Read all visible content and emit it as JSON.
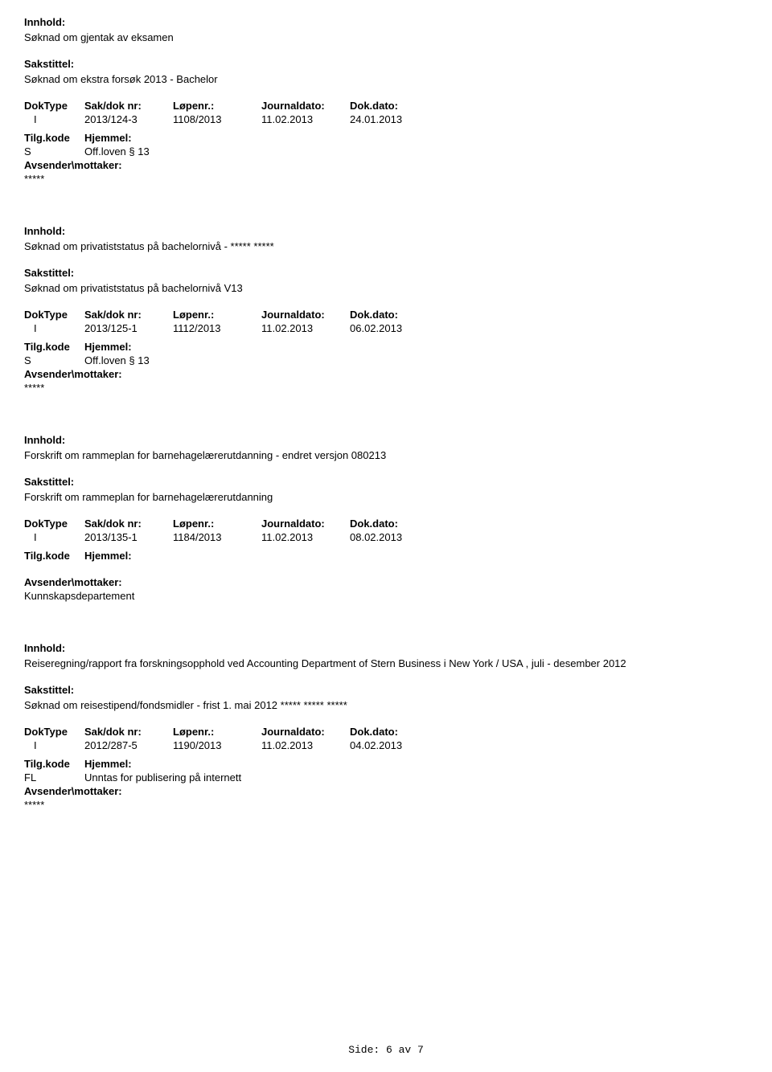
{
  "labels": {
    "innhold": "Innhold:",
    "sakstittel": "Sakstittel:",
    "doktype": "DokType",
    "sakdok": "Sak/dok nr:",
    "lopenr": "Løpenr.:",
    "journaldato": "Journaldato:",
    "dokdato": "Dok.dato:",
    "tilgkode": "Tilg.kode",
    "hjemmel": "Hjemmel:",
    "avsender": "Avsender\\mottaker:"
  },
  "entries": [
    {
      "innhold": "Søknad om gjentak av eksamen",
      "sakstittel": "Søknad om ekstra forsøk 2013 - Bachelor",
      "doktype": "I",
      "sakdok": "2013/124-3",
      "lopenr": "1108/2013",
      "journaldato": "11.02.2013",
      "dokdato": "24.01.2013",
      "tilgkode": "S",
      "hjemmel": "Off.loven § 13",
      "avsender_value": "*****"
    },
    {
      "innhold": "Søknad om privatiststatus på bachelornivå - ***** *****",
      "sakstittel": "Søknad om privatiststatus på bachelornivå V13",
      "doktype": "I",
      "sakdok": "2013/125-1",
      "lopenr": "1112/2013",
      "journaldato": "11.02.2013",
      "dokdato": "06.02.2013",
      "tilgkode": "S",
      "hjemmel": "Off.loven § 13",
      "avsender_value": "*****"
    },
    {
      "innhold": "Forskrift om rammeplan for barnehagelærerutdanning - endret versjon 080213",
      "sakstittel": "Forskrift om rammeplan for barnehagelærerutdanning",
      "doktype": "I",
      "sakdok": "2013/135-1",
      "lopenr": "1184/2013",
      "journaldato": "11.02.2013",
      "dokdato": "08.02.2013",
      "tilgkode": "",
      "hjemmel": "",
      "avsender_value": "Kunnskapsdepartement"
    },
    {
      "innhold": "Reiseregning/rapport fra forskningsopphold ved Accounting Department of Stern Business i New York / USA , juli - desember 2012",
      "sakstittel": "Søknad om reisestipend/fondsmidler - frist 1. mai 2012 ***** ***** *****",
      "doktype": "I",
      "sakdok": "2012/287-5",
      "lopenr": "1190/2013",
      "journaldato": "11.02.2013",
      "dokdato": "04.02.2013",
      "tilgkode": "FL",
      "hjemmel": "Unntas for publisering på internett",
      "avsender_value": "*****"
    }
  ],
  "footer": "Side: 6 av 7"
}
